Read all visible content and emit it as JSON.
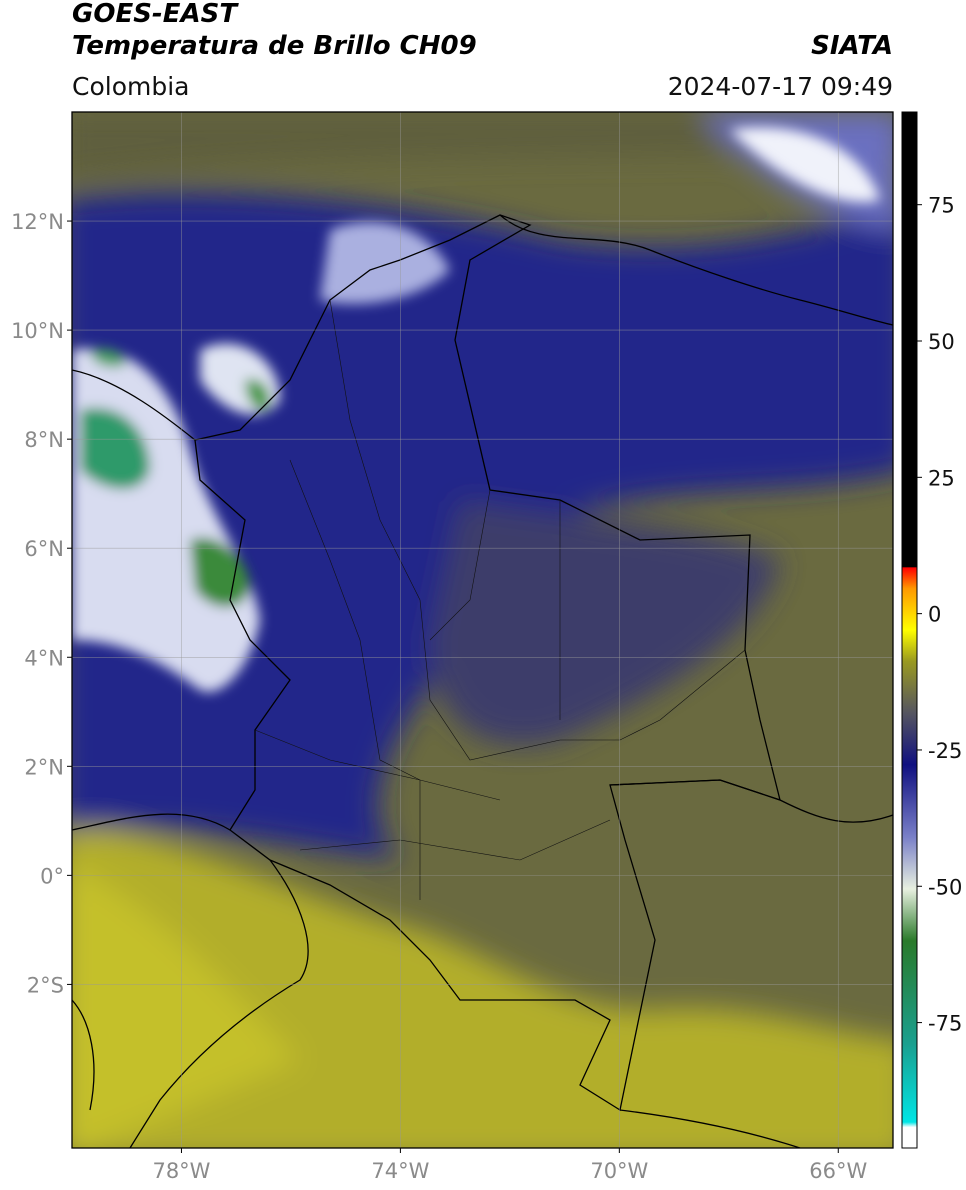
{
  "header": {
    "title": "GOES-EAST",
    "subtitle": "Temperatura de Brillo CH09",
    "source": "SIATA",
    "region": "Colombia",
    "timestamp": "2024-07-17 09:49"
  },
  "map": {
    "type": "map",
    "xlim": [
      -80,
      -65
    ],
    "ylim": [
      -5,
      14
    ],
    "xticks": [
      {
        "value": -78,
        "label": "78°W"
      },
      {
        "value": -74,
        "label": "74°W"
      },
      {
        "value": -70,
        "label": "70°W"
      },
      {
        "value": -66,
        "label": "66°W"
      }
    ],
    "yticks": [
      {
        "value": 12,
        "label": "12°N"
      },
      {
        "value": 10,
        "label": "10°N"
      },
      {
        "value": 8,
        "label": "8°N"
      },
      {
        "value": 6,
        "label": "6°N"
      },
      {
        "value": 4,
        "label": "4°N"
      },
      {
        "value": 2,
        "label": "2°N"
      },
      {
        "value": 0,
        "label": "0°"
      },
      {
        "value": -2,
        "label": "2°S"
      }
    ],
    "grid": true
  },
  "colorbar": {
    "lim": [
      -98,
      92
    ],
    "ticks": [
      75,
      50,
      25,
      0,
      -25,
      -50,
      -75
    ]
  }
}
